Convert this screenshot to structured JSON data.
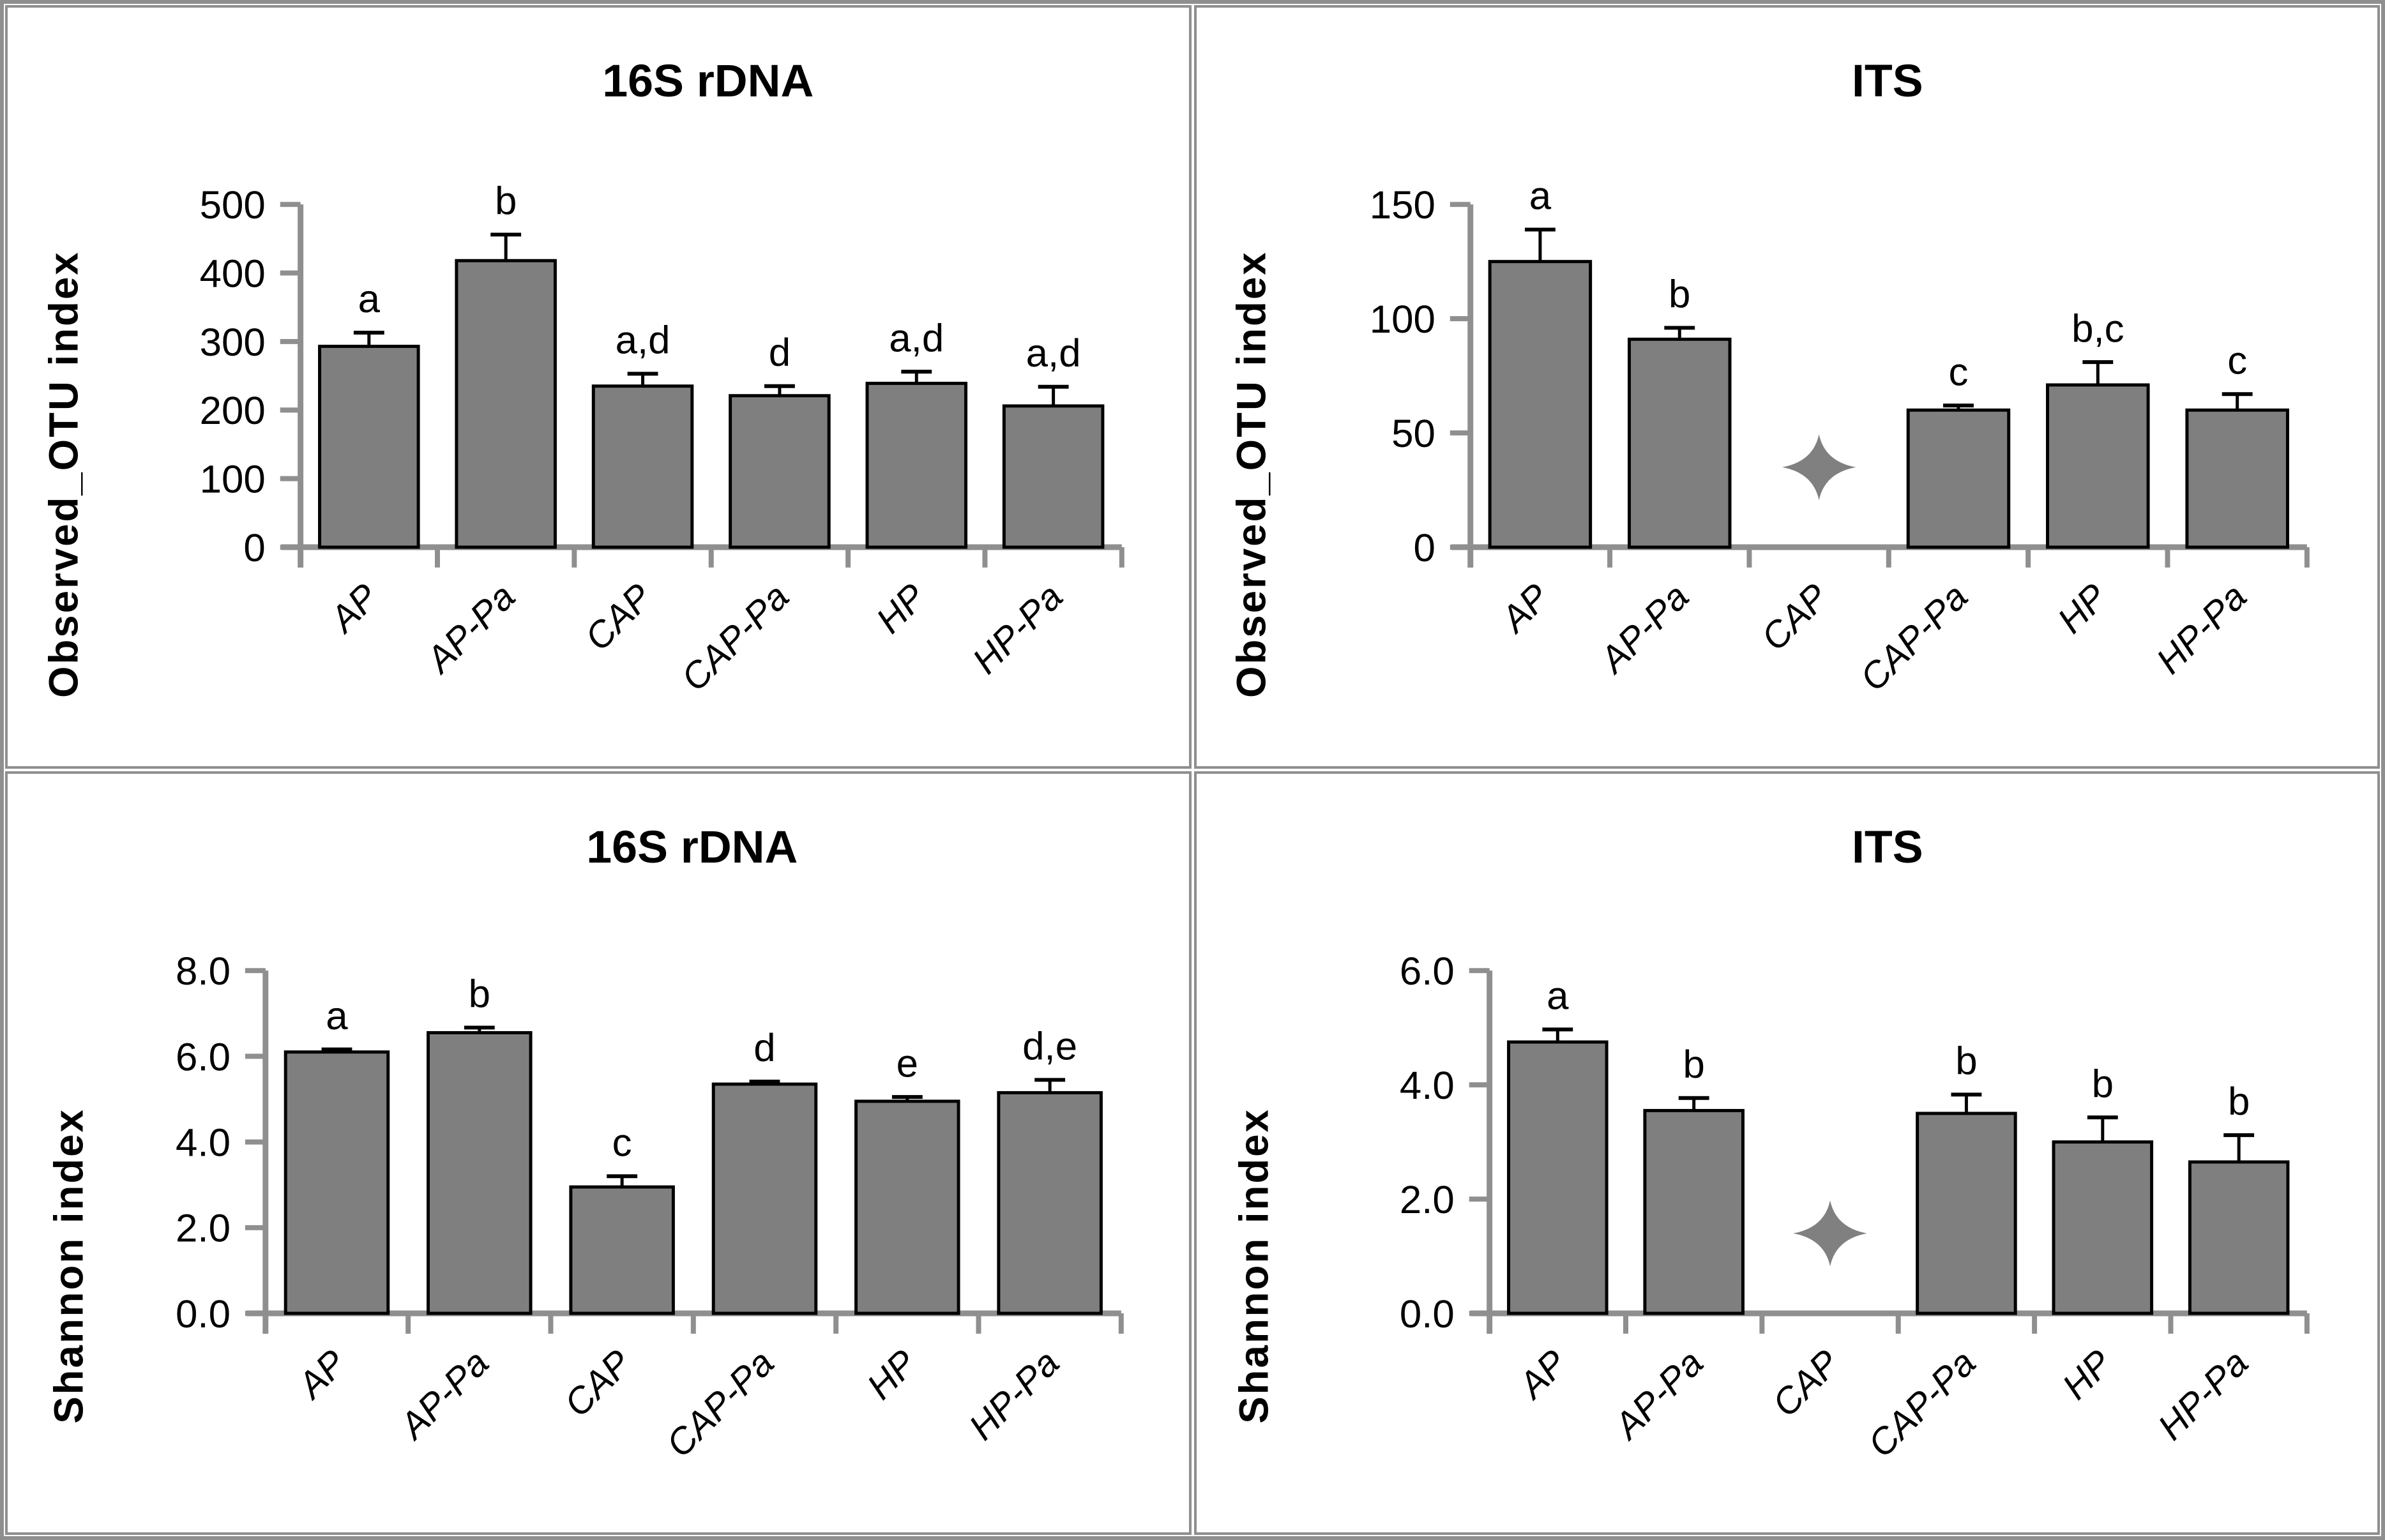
{
  "colors": {
    "bar_fill": "#7f7f7f",
    "bar_stroke": "#000000",
    "axis": "#8f8f8f",
    "error_bar": "#000000",
    "missing_star": "#808080",
    "panel_border": "#8f8f8f",
    "text": "#000000"
  },
  "chart_data": [
    {
      "type": "bar",
      "title": "16S rDNA",
      "ylabel": "Observed_OTU index",
      "xlabel": "",
      "categories": [
        "AP",
        "AP-Pa",
        "CAP",
        "CAP-Pa",
        "HP",
        "HP-Pa"
      ],
      "values": [
        293,
        418,
        235,
        221,
        239,
        206
      ],
      "errors": [
        20,
        38,
        18,
        14,
        17,
        28
      ],
      "sig_letters": [
        "a",
        "b",
        "a,d",
        "d",
        "a,d",
        "a,d"
      ],
      "yticks": [
        {
          "v": 0,
          "label": "0"
        },
        {
          "v": 100,
          "label": "100"
        },
        {
          "v": 200,
          "label": "200"
        },
        {
          "v": 300,
          "label": "300"
        },
        {
          "v": 400,
          "label": "400"
        },
        {
          "v": 500,
          "label": "500"
        }
      ],
      "ylim": [
        0,
        500
      ],
      "grid": false,
      "legend": false,
      "missing_marker": null
    },
    {
      "type": "bar",
      "title": "ITS",
      "ylabel": "Observed_OTU index",
      "xlabel": "",
      "categories": [
        "AP",
        "AP-Pa",
        "CAP",
        "CAP-Pa",
        "HP",
        "HP-Pa"
      ],
      "values": [
        125,
        91,
        null,
        60,
        71,
        60
      ],
      "errors": [
        14,
        5,
        null,
        2,
        10,
        7
      ],
      "sig_letters": [
        "a",
        "b",
        "",
        "c",
        "b,c",
        "c"
      ],
      "yticks": [
        {
          "v": 0,
          "label": "0"
        },
        {
          "v": 50,
          "label": "50"
        },
        {
          "v": 100,
          "label": "100"
        },
        {
          "v": 150,
          "label": "150"
        }
      ],
      "ylim": [
        0,
        150
      ],
      "grid": false,
      "legend": false,
      "missing_marker": {
        "category_index": 2,
        "symbol": "four-pointed-star",
        "y": 35
      }
    },
    {
      "type": "bar",
      "title": "16S rDNA",
      "ylabel": "Shannon index",
      "xlabel": "",
      "categories": [
        "AP",
        "AP-Pa",
        "CAP",
        "CAP-Pa",
        "HP",
        "HP-Pa"
      ],
      "values": [
        6.1,
        6.55,
        2.95,
        5.35,
        4.95,
        5.15
      ],
      "errors": [
        0.06,
        0.12,
        0.25,
        0.06,
        0.1,
        0.3
      ],
      "sig_letters": [
        "a",
        "b",
        "c",
        "d",
        "e",
        "d,e"
      ],
      "yticks": [
        {
          "v": 0,
          "label": "0.0"
        },
        {
          "v": 2,
          "label": "2.0"
        },
        {
          "v": 4,
          "label": "4.0"
        },
        {
          "v": 6,
          "label": "6.0"
        },
        {
          "v": 8,
          "label": "8.0"
        }
      ],
      "ylim": [
        0,
        8
      ],
      "grid": false,
      "legend": false,
      "missing_marker": null
    },
    {
      "type": "bar",
      "title": "ITS",
      "ylabel": "Shannon index",
      "xlabel": "",
      "categories": [
        "AP",
        "AP-Pa",
        "CAP",
        "CAP-Pa",
        "HP",
        "HP-Pa"
      ],
      "values": [
        4.75,
        3.55,
        null,
        3.5,
        3.0,
        2.65
      ],
      "errors": [
        0.22,
        0.22,
        null,
        0.33,
        0.43,
        0.47
      ],
      "sig_letters": [
        "a",
        "b",
        "",
        "b",
        "b",
        "b"
      ],
      "yticks": [
        {
          "v": 0,
          "label": "0.0"
        },
        {
          "v": 2,
          "label": "2.0"
        },
        {
          "v": 4,
          "label": "4.0"
        },
        {
          "v": 6,
          "label": "6.0"
        }
      ],
      "ylim": [
        0,
        6
      ],
      "grid": false,
      "legend": false,
      "missing_marker": {
        "category_index": 2,
        "symbol": "four-pointed-star",
        "y": 1.4
      }
    }
  ]
}
